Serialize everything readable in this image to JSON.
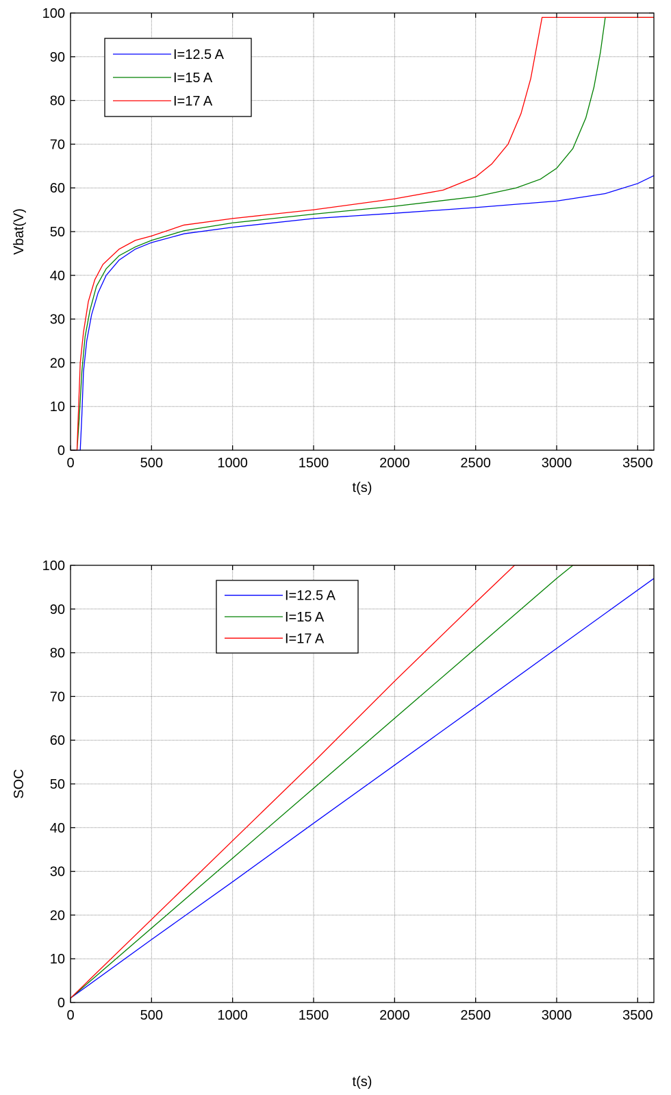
{
  "chart_data": [
    {
      "type": "line",
      "title": "",
      "xlabel": "t(s)",
      "ylabel": "Vbat(V)",
      "xlim": [
        0,
        3600
      ],
      "ylim": [
        0,
        100
      ],
      "xticks": [
        0,
        500,
        1000,
        1500,
        2000,
        2500,
        3000,
        3500
      ],
      "yticks": [
        0,
        10,
        20,
        30,
        40,
        50,
        60,
        70,
        80,
        90,
        100
      ],
      "grid": true,
      "legend_position": "top-left",
      "series": [
        {
          "name": "I=12.5 A",
          "color": "#0000ff",
          "points": [
            [
              0,
              0
            ],
            [
              60,
              0
            ],
            [
              70,
              8
            ],
            [
              80,
              18
            ],
            [
              100,
              25
            ],
            [
              130,
              31
            ],
            [
              170,
              36
            ],
            [
              220,
              40
            ],
            [
              300,
              43.5
            ],
            [
              400,
              46
            ],
            [
              500,
              47.5
            ],
            [
              700,
              49.5
            ],
            [
              1000,
              51
            ],
            [
              1500,
              53
            ],
            [
              2000,
              54.2
            ],
            [
              2500,
              55.5
            ],
            [
              3000,
              57
            ],
            [
              3300,
              58.7
            ],
            [
              3500,
              61
            ],
            [
              3600,
              62.8
            ]
          ]
        },
        {
          "name": "I=15 A",
          "color": "#008000",
          "points": [
            [
              0,
              0
            ],
            [
              40,
              0
            ],
            [
              55,
              8
            ],
            [
              70,
              18
            ],
            [
              90,
              26
            ],
            [
              120,
              32
            ],
            [
              160,
              37.5
            ],
            [
              220,
              41.5
            ],
            [
              300,
              44.5
            ],
            [
              400,
              46.5
            ],
            [
              500,
              48
            ],
            [
              700,
              50.2
            ],
            [
              1000,
              52
            ],
            [
              1500,
              54
            ],
            [
              2000,
              55.8
            ],
            [
              2500,
              58
            ],
            [
              2750,
              60
            ],
            [
              2900,
              62
            ],
            [
              3000,
              64.5
            ],
            [
              3100,
              69
            ],
            [
              3180,
              76
            ],
            [
              3230,
              83
            ],
            [
              3270,
              91
            ],
            [
              3300,
              99
            ],
            [
              3600,
              99
            ]
          ]
        },
        {
          "name": "I=17 A",
          "color": "#ff0000",
          "points": [
            [
              0,
              0
            ],
            [
              40,
              0
            ],
            [
              50,
              10
            ],
            [
              60,
              20
            ],
            [
              80,
              27
            ],
            [
              110,
              34
            ],
            [
              150,
              39
            ],
            [
              200,
              42.5
            ],
            [
              300,
              46
            ],
            [
              400,
              48
            ],
            [
              500,
              49
            ],
            [
              700,
              51.5
            ],
            [
              1000,
              53
            ],
            [
              1500,
              55
            ],
            [
              2000,
              57.5
            ],
            [
              2300,
              59.5
            ],
            [
              2500,
              62.5
            ],
            [
              2600,
              65.5
            ],
            [
              2700,
              70
            ],
            [
              2780,
              77
            ],
            [
              2840,
              85
            ],
            [
              2880,
              93
            ],
            [
              2910,
              99
            ],
            [
              3600,
              99
            ]
          ]
        }
      ]
    },
    {
      "type": "line",
      "title": "",
      "xlabel": "t(s)",
      "ylabel": "SOC",
      "xlim": [
        0,
        3600
      ],
      "ylim": [
        0,
        100
      ],
      "xticks": [
        0,
        500,
        1000,
        1500,
        2000,
        2500,
        3000,
        3500
      ],
      "yticks": [
        0,
        10,
        20,
        30,
        40,
        50,
        60,
        70,
        80,
        90,
        100
      ],
      "grid": true,
      "legend_position": "top-center",
      "series": [
        {
          "name": "I=12.5 A",
          "color": "#0000ff",
          "points": [
            [
              0,
              1
            ],
            [
              500,
              14.4
            ],
            [
              1000,
              27.6
            ],
            [
              1500,
              41
            ],
            [
              2000,
              54.3
            ],
            [
              2500,
              67.6
            ],
            [
              3000,
              81
            ],
            [
              3600,
              97
            ]
          ]
        },
        {
          "name": "I=15 A",
          "color": "#008000",
          "points": [
            [
              0,
              1
            ],
            [
              500,
              17
            ],
            [
              1000,
              33
            ],
            [
              1500,
              49
            ],
            [
              2000,
              65
            ],
            [
              2500,
              81
            ],
            [
              3000,
              97
            ],
            [
              3100,
              100
            ],
            [
              3600,
              100
            ]
          ]
        },
        {
          "name": "I=17 A",
          "color": "#ff0000",
          "points": [
            [
              0,
              1
            ],
            [
              500,
              19
            ],
            [
              1000,
              37
            ],
            [
              1500,
              55
            ],
            [
              2000,
              73.5
            ],
            [
              2500,
              91.5
            ],
            [
              2740,
              100
            ],
            [
              3600,
              100
            ]
          ]
        }
      ]
    }
  ]
}
